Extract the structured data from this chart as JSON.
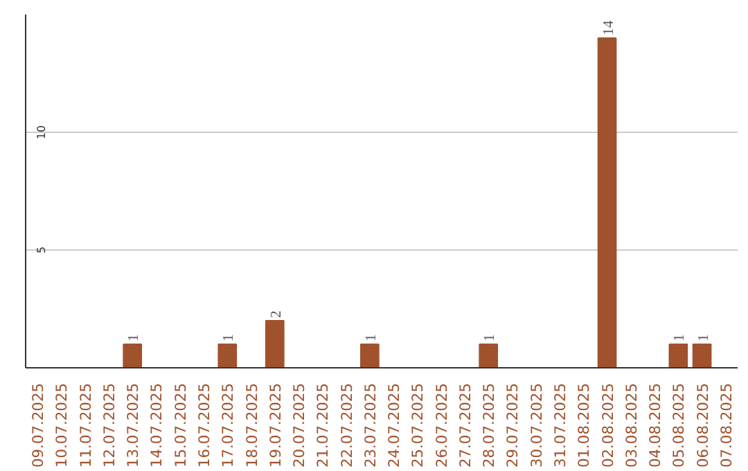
{
  "chart_data": {
    "type": "bar",
    "categories": [
      "09.07.2025",
      "10.07.2025",
      "11.07.2025",
      "12.07.2025",
      "13.07.2025",
      "14.07.2025",
      "15.07.2025",
      "16.07.2025",
      "17.07.2025",
      "18.07.2025",
      "19.07.2025",
      "20.07.2025",
      "21.07.2025",
      "22.07.2025",
      "23.07.2025",
      "24.07.2025",
      "25.07.2025",
      "26.07.2025",
      "27.07.2025",
      "28.07.2025",
      "29.07.2025",
      "30.07.2025",
      "31.07.2025",
      "01.08.2025",
      "02.08.2025",
      "03.08.2025",
      "04.08.2025",
      "05.08.2025",
      "06.08.2025",
      "07.08.2025"
    ],
    "values": [
      0,
      0,
      0,
      0,
      1,
      0,
      0,
      0,
      1,
      0,
      2,
      0,
      0,
      0,
      1,
      0,
      0,
      0,
      0,
      1,
      0,
      0,
      0,
      0,
      14,
      0,
      0,
      1,
      1,
      0
    ],
    "value_labels": [
      null,
      null,
      null,
      null,
      "1",
      null,
      null,
      null,
      "1",
      null,
      "2",
      null,
      null,
      null,
      "1",
      null,
      null,
      null,
      null,
      "1",
      null,
      null,
      null,
      null,
      "14",
      null,
      null,
      "1",
      "1",
      null
    ],
    "color": "#a0522d",
    "ylim": [
      0,
      15
    ],
    "yticks": [
      5,
      10
    ],
    "grid": "y"
  }
}
